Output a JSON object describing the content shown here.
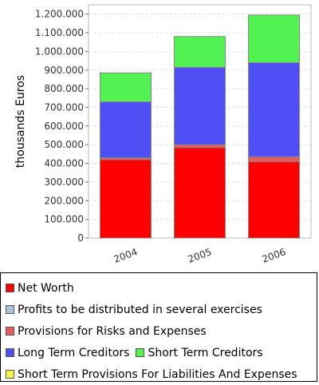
{
  "chart_data": {
    "type": "bar",
    "stacked": true,
    "categories": [
      "2004",
      "2005",
      "2006"
    ],
    "series": [
      {
        "name": "Net Worth",
        "color": "#ff0000",
        "values": [
          420000,
          485000,
          410000
        ]
      },
      {
        "name": "Profits to be distributed in several exercises",
        "color": "#aac4dd",
        "values": [
          0,
          0,
          0
        ]
      },
      {
        "name": "Provisions for Risks and Expenses",
        "color": "#e85b5b",
        "values": [
          10000,
          15000,
          25000
        ]
      },
      {
        "name": "Long Term Creditors",
        "color": "#4f4ff6",
        "values": [
          300000,
          415000,
          505000
        ]
      },
      {
        "name": "Short Term Creditors",
        "color": "#52f252",
        "values": [
          155000,
          165000,
          255000
        ]
      },
      {
        "name": "Short Term Provisions For Liabilities And Expenses",
        "color": "#f6f64e",
        "values": [
          0,
          0,
          0
        ]
      }
    ],
    "ylabel": "thousands Euros",
    "ylim": [
      0,
      1250000
    ],
    "yticks": [
      0,
      100000,
      200000,
      300000,
      400000,
      500000,
      600000,
      700000,
      800000,
      900000,
      1000000,
      1100000,
      1200000
    ],
    "ytick_labels": [
      "0",
      "100.000",
      "200.000",
      "300.000",
      "400.000",
      "500.000",
      "600.000",
      "700.000",
      "800.000",
      "900.000",
      "1.000.000",
      "1.100.000",
      "1.200.000"
    ],
    "grid": true,
    "legend_position": "bottom"
  },
  "legend": {
    "rows": [
      [
        0
      ],
      [
        1
      ],
      [
        2
      ],
      [
        3,
        4
      ],
      [
        5
      ]
    ]
  }
}
